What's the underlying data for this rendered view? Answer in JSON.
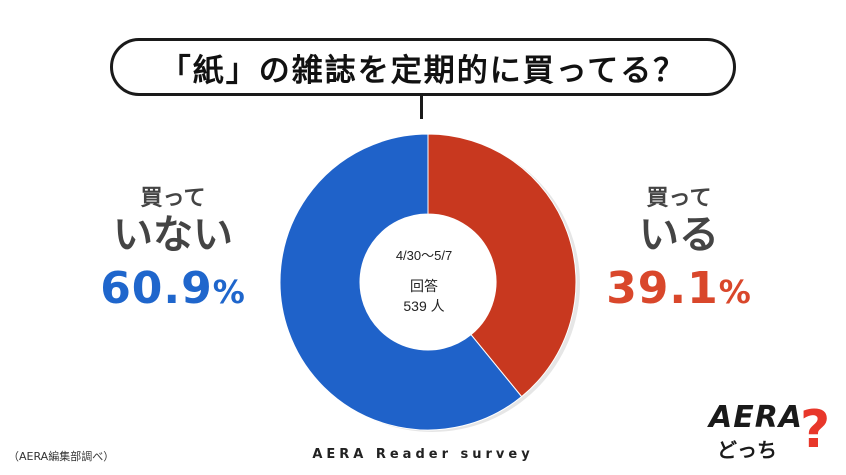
{
  "question": "「紙」の雑誌を定期的に買ってる？",
  "chart_data": {
    "type": "pie",
    "slices": [
      {
        "label_line1": "買って",
        "label_line2": "いる",
        "value": 39.1,
        "display": "39.1%",
        "color": "#c8381f"
      },
      {
        "label_line1": "買って",
        "label_line2": "いない",
        "value": 60.9,
        "display": "60.9%",
        "color": "#1f62c9"
      }
    ],
    "center": {
      "period": "4/30～5/7",
      "answers_label": "回答",
      "answers_count": "539 人"
    }
  },
  "source_note": "（AERA編集部調べ）",
  "survey_label": "AERA Reader survey",
  "logo": {
    "brand": "AERA",
    "tagline": "どっち",
    "mark": "?"
  }
}
